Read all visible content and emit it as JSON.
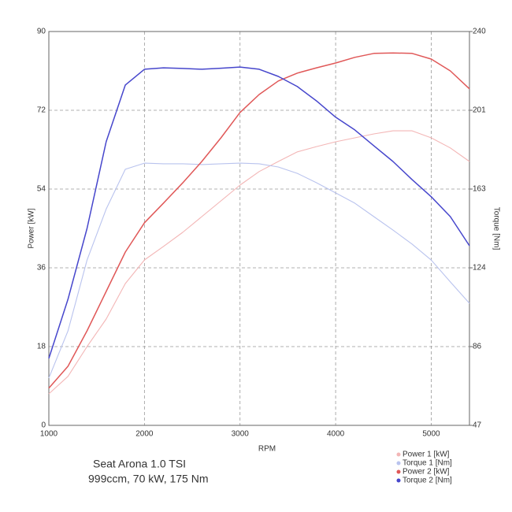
{
  "chart_data": {
    "type": "line",
    "title": "Seat Arona 1.0 TSI",
    "subtitle": "999ccm, 70 kW, 175 Nm",
    "xlabel": "RPM",
    "ylabel": "Power [kW]",
    "y2label": "Torque [Nm]",
    "x": [
      1000,
      1200,
      1400,
      1600,
      1800,
      2000,
      2200,
      2400,
      2600,
      2800,
      3000,
      3200,
      3400,
      3600,
      3800,
      4000,
      4200,
      4400,
      4600,
      4800,
      5000,
      5200,
      5400
    ],
    "xlim": [
      1000,
      5400
    ],
    "xticks": [
      1000,
      2000,
      3000,
      4000,
      5000
    ],
    "ylim": [
      0,
      90
    ],
    "yticks": [
      0,
      18,
      36,
      54,
      72,
      90
    ],
    "y2lim": [
      47,
      240
    ],
    "y2ticks": [
      47,
      {
        "value": 85.6,
        "label": "86"
      },
      {
        "value": 124.2,
        "label": "124"
      },
      {
        "value": 162.8,
        "label": "163"
      },
      {
        "value": 201.4,
        "label": "201"
      },
      240
    ],
    "grid": true,
    "legend": "bottom-right",
    "series": [
      {
        "name": "Power 1 [kW]",
        "color": "#f3b6b6",
        "values": [
          7.2,
          11.2,
          18,
          24.3,
          32.4,
          37.8,
          40.9,
          44.1,
          47.7,
          51.3,
          54.9,
          58,
          60.3,
          62.5,
          63.7,
          64.8,
          65.7,
          66.6,
          67.3,
          67.3,
          65.7,
          63.4,
          60.3
        ]
      },
      {
        "name": "Torque 1 [Nm]",
        "color": "#b9c3ee",
        "axis": "y2",
        "values": [
          70.2,
          93.3,
          128,
          153,
          172.5,
          175.5,
          175.2,
          175.2,
          174.8,
          175.2,
          175.5,
          175.2,
          173.6,
          170.5,
          165.9,
          160.9,
          155.9,
          149.3,
          142.7,
          135.8,
          128,
          117.3,
          106.8
        ]
      },
      {
        "name": "Power 2 [kW]",
        "color": "#e05858",
        "values": [
          8.5,
          13.5,
          21.6,
          30.6,
          39.6,
          46.3,
          50.8,
          55.4,
          60.3,
          65.7,
          71.5,
          75.6,
          78.7,
          80.5,
          81.7,
          82.8,
          84.1,
          85,
          85.1,
          85,
          83.7,
          81,
          76.9
        ]
      },
      {
        "name": "Torque 2 [Nm]",
        "color": "#4646cc",
        "axis": "y2",
        "values": [
          79.8,
          108.8,
          143.5,
          186,
          213.8,
          221.5,
          222.2,
          221.9,
          221.5,
          222,
          222.6,
          221.5,
          218,
          213,
          206,
          198,
          191.8,
          184,
          176.3,
          167.4,
          159,
          149.3,
          135
        ]
      }
    ]
  }
}
